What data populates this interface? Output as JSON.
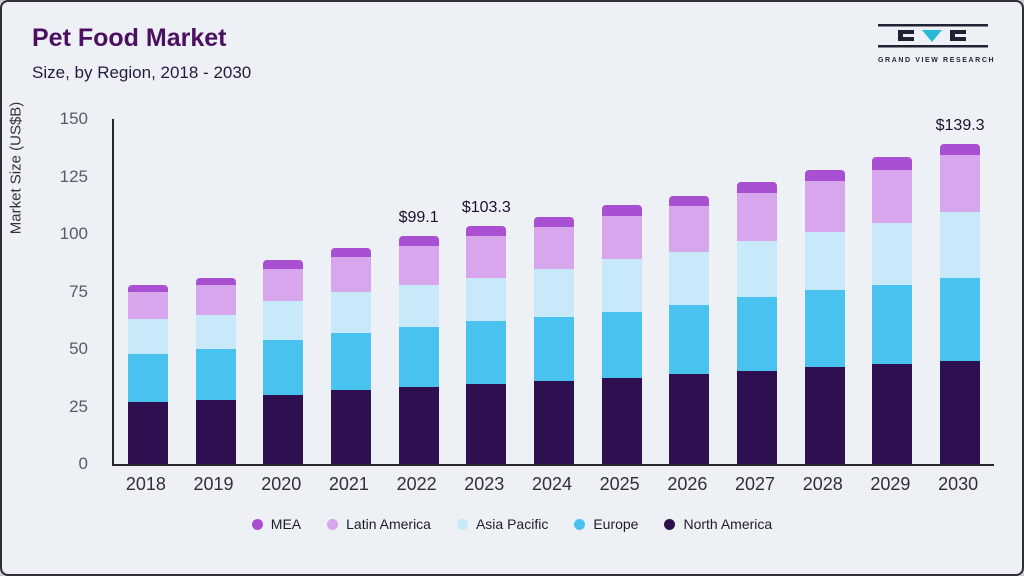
{
  "header": {
    "title": "Pet Food Market",
    "subtitle": "Size, by Region, 2018 - 2030",
    "logo_text": "GRAND VIEW RESEARCH"
  },
  "colors": {
    "logo_dark": "#1e2433",
    "logo_teal": "#29b9d6",
    "axis": "#26262f",
    "background": "#edf0f4"
  },
  "chart_data": {
    "type": "bar",
    "stacked": true,
    "title": "Pet Food Market Size, by Region, 2018 - 2030",
    "xlabel": "",
    "ylabel": "Market Size (US$B)",
    "ylim": [
      0,
      150
    ],
    "yticks": [
      0,
      25,
      50,
      75,
      100,
      125,
      150
    ],
    "grid": false,
    "legend_position": "bottom",
    "categories": [
      "2018",
      "2019",
      "2020",
      "2021",
      "2022",
      "2023",
      "2024",
      "2025",
      "2026",
      "2027",
      "2028",
      "2029",
      "2030"
    ],
    "series": [
      {
        "name": "North America",
        "color": "#2e0f4f",
        "values": [
          27,
          28,
          30,
          32,
          33.5,
          35,
          36,
          37.5,
          39,
          40.5,
          42,
          43.5,
          45
        ]
      },
      {
        "name": "Europe",
        "color": "#49c2f0",
        "values": [
          21,
          22,
          24,
          25,
          26,
          27,
          28,
          28.5,
          30,
          32,
          33.5,
          34.5,
          36
        ]
      },
      {
        "name": "Asia Pacific",
        "color": "#c8e9fa",
        "values": [
          15,
          15,
          17,
          18,
          18.5,
          19,
          21,
          23,
          23,
          24.5,
          25.5,
          27,
          28.5
        ]
      },
      {
        "name": "Latin America",
        "color": "#d8a6ec",
        "values": [
          12,
          13,
          14,
          15,
          17,
          18,
          18,
          19,
          20,
          21,
          22,
          23,
          25
        ]
      },
      {
        "name": "MEA",
        "color": "#a94fd1",
        "values": [
          3,
          3,
          3.5,
          4,
          4.1,
          4.3,
          4.4,
          4.5,
          4.7,
          4.8,
          5,
          5.3,
          4.8
        ]
      }
    ],
    "bar_labels": {
      "2022": "$99.1",
      "2023": "$103.3",
      "2030": "$139.3"
    },
    "legend": [
      "MEA",
      "Latin America",
      "Asia Pacific",
      "Europe",
      "North America"
    ]
  }
}
